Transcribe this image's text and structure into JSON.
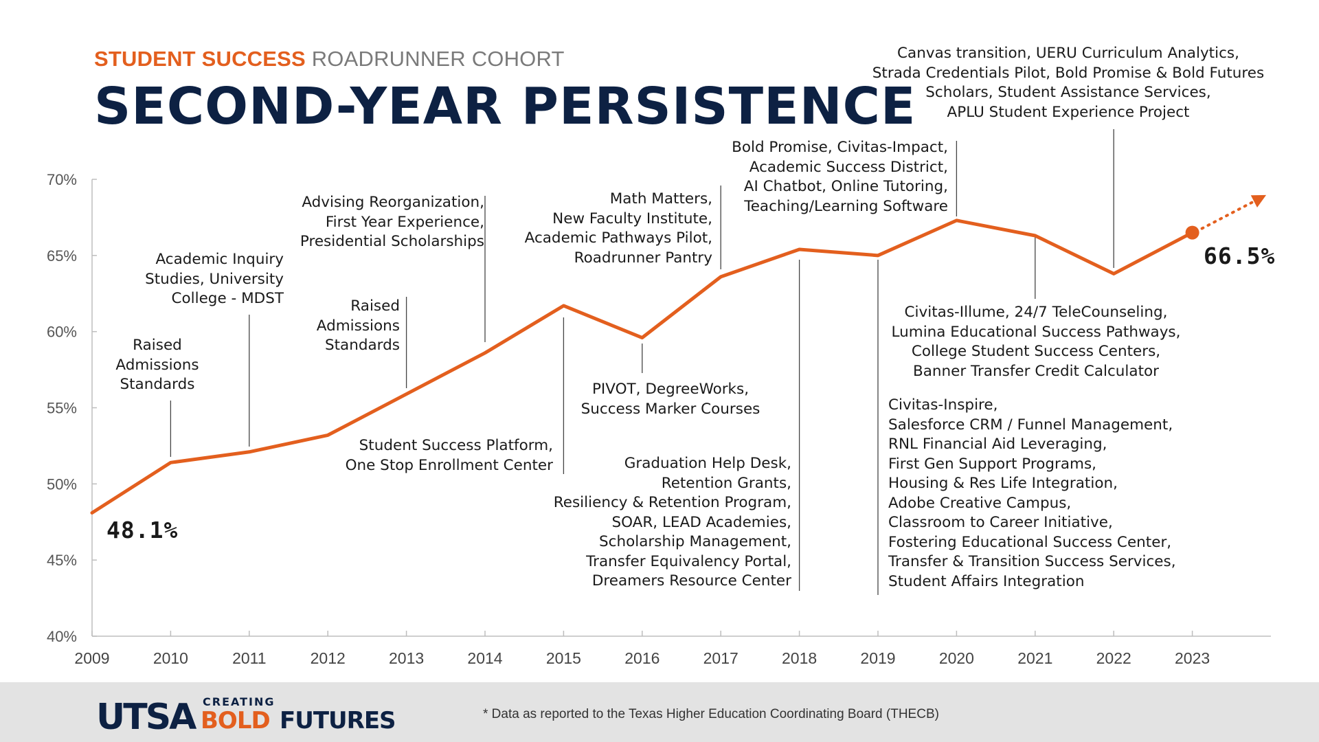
{
  "header": {
    "kicker_accent": "STUDENT SUCCESS",
    "kicker_rest": "ROADRUNNER COHORT",
    "title": "SECOND-YEAR PERSISTENCE"
  },
  "colors": {
    "accent": "#e35f1e",
    "navy": "#0d2143",
    "axis": "#bdbdbd",
    "text": "#1a1a1a"
  },
  "chart_data": {
    "type": "line",
    "title": "SECOND-YEAR PERSISTENCE",
    "xlabel": "",
    "ylabel": "",
    "x": [
      2009,
      2010,
      2011,
      2012,
      2013,
      2014,
      2015,
      2016,
      2017,
      2018,
      2019,
      2020,
      2021,
      2022,
      2023
    ],
    "series": [
      {
        "values": [
          48.1,
          51.4,
          52.1,
          53.2,
          55.9,
          58.6,
          61.7,
          59.6,
          63.6,
          65.4,
          65.0,
          67.3,
          66.3,
          63.8,
          66.5
        ]
      }
    ],
    "projection": {
      "from": [
        2023,
        66.5
      ],
      "to": [
        2024,
        68.8
      ],
      "style": "dotted-arrow"
    },
    "ylim": [
      40,
      70
    ],
    "xlim": [
      2009,
      2024
    ],
    "y_ticks": [
      "40%",
      "45%",
      "50%",
      "55%",
      "60%",
      "65%",
      "70%"
    ],
    "y_tick_values": [
      40,
      45,
      50,
      55,
      60,
      65,
      70
    ],
    "x_ticks": [
      "2009",
      "2010",
      "2011",
      "2012",
      "2013",
      "2014",
      "2015",
      "2016",
      "2017",
      "2018",
      "2019",
      "2020",
      "2021",
      "2022",
      "2023"
    ],
    "start_label": "48.1%",
    "end_label": "66.5%",
    "grid": false,
    "annotations": [
      {
        "x": 2010,
        "lines": [
          "Raised",
          "Admissions",
          "Standards"
        ]
      },
      {
        "x": 2011,
        "lines": [
          "Academic Inquiry",
          "Studies, University",
          "College - MDST"
        ]
      },
      {
        "x": 2013,
        "lines": [
          "Raised",
          "Admissions",
          "Standards"
        ]
      },
      {
        "x": 2014,
        "lines": [
          "Advising Reorganization,",
          "First Year Experience,",
          "Presidential Scholarships"
        ]
      },
      {
        "x": 2015,
        "lines": [
          "Student Success Platform,",
          "One Stop Enrollment Center"
        ]
      },
      {
        "x": 2016,
        "lines": [
          "PIVOT, DegreeWorks,",
          "Success Marker Courses"
        ]
      },
      {
        "x": 2017,
        "lines": [
          "Math Matters,",
          "New Faculty Institute,",
          "Academic Pathways Pilot,",
          "Roadrunner Pantry"
        ]
      },
      {
        "x": 2018,
        "lines": [
          "Graduation Help Desk,",
          "Retention Grants,",
          "Resiliency & Retention Program,",
          "SOAR, LEAD Academies,",
          "Scholarship Management,",
          "Transfer Equivalency Portal,",
          "Dreamers Resource Center"
        ]
      },
      {
        "x": 2019,
        "lines": [
          "Civitas-Inspire,",
          "Salesforce CRM / Funnel Management,",
          "RNL Financial Aid Leveraging,",
          "First Gen Support Programs,",
          "Housing & Res Life Integration,",
          "Adobe Creative Campus,",
          "Classroom to Career Initiative,",
          "Fostering Educational Success Center,",
          "Transfer & Transition Success Services,",
          "Student Affairs Integration"
        ]
      },
      {
        "x": 2020,
        "lines": [
          "Bold Promise, Civitas-Impact,",
          "Academic Success District,",
          "AI Chatbot, Online Tutoring,",
          "Teaching/Learning Software"
        ]
      },
      {
        "x": 2021,
        "lines": [
          "Civitas-Illume, 24/7 TeleCounseling,",
          "Lumina Educational Success Pathways,",
          "College Student Success Centers,",
          "Banner Transfer Credit Calculator"
        ]
      },
      {
        "x": 2022,
        "lines": [
          "Canvas transition, UERU Curriculum Analytics,",
          "Strada Credentials Pilot, Bold Promise & Bold Futures",
          "Scholars, Student Assistance Services,",
          "APLU Student Experience Project"
        ]
      }
    ]
  },
  "footer": {
    "logo_utsa": "UTSA",
    "logo_creating": "CREATING",
    "logo_bold": "BOLD",
    "logo_futures": "FUTURES",
    "footnote": "* Data as reported to the Texas Higher Education Coordinating Board (THECB)"
  }
}
